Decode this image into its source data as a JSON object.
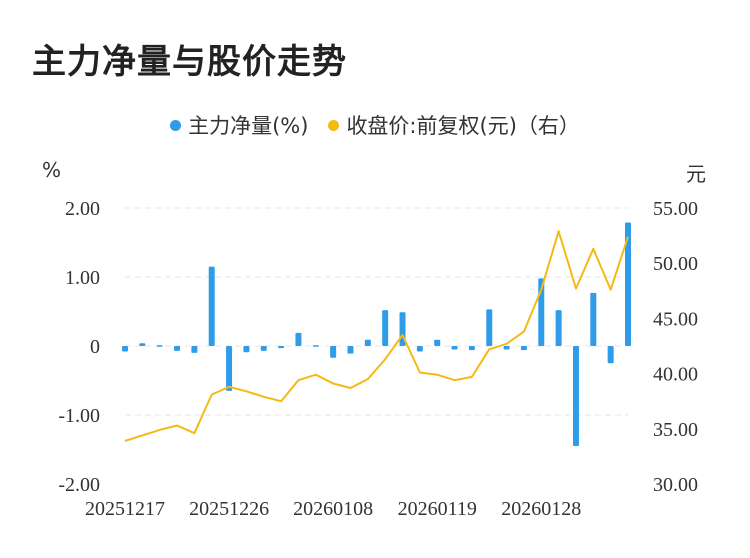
{
  "title": "主力净量与股价走势",
  "legend": {
    "bar_label": "主力净量(%)",
    "line_label": "收盘价:前复权(元)（右）"
  },
  "units": {
    "left": "%",
    "right": "元"
  },
  "colors": {
    "bar": "#2f9cea",
    "line": "#f5b914",
    "grid": "#e6e6e6",
    "text": "#333333"
  },
  "chart_data": {
    "type": "bar+line",
    "x_ticks": [
      "20251217",
      "20251226",
      "20260108",
      "20260119",
      "20260128"
    ],
    "left_axis": {
      "ticks": [
        "2.00",
        "1.00",
        "0",
        "-1.00",
        "-2.00"
      ],
      "ylim": [
        -2,
        2
      ]
    },
    "right_axis": {
      "ticks": [
        "55.00",
        "50.00",
        "45.00",
        "40.00",
        "35.00",
        "30.00"
      ],
      "ylim": [
        30,
        55
      ]
    },
    "series": [
      {
        "name": "主力净量(%)",
        "type": "bar",
        "values": [
          -0.08,
          0.04,
          0.01,
          -0.07,
          -0.1,
          1.15,
          -0.65,
          -0.09,
          -0.07,
          -0.03,
          0.19,
          0.01,
          -0.17,
          -0.11,
          0.09,
          0.52,
          0.49,
          -0.08,
          0.09,
          -0.05,
          -0.06,
          0.53,
          -0.05,
          -0.06,
          0.98,
          0.52,
          -1.45,
          0.77,
          -0.25,
          1.79
        ]
      },
      {
        "name": "收盘价:前复权(元)（右）",
        "type": "line",
        "values": [
          33.9,
          34.4,
          34.9,
          35.3,
          34.6,
          38.1,
          38.8,
          38.4,
          37.9,
          37.5,
          39.4,
          39.9,
          39.1,
          38.7,
          39.5,
          41.3,
          43.5,
          40.1,
          39.9,
          39.4,
          39.7,
          42.2,
          42.7,
          43.8,
          47.6,
          52.9,
          47.7,
          51.3,
          47.6,
          52.4
        ]
      }
    ]
  }
}
